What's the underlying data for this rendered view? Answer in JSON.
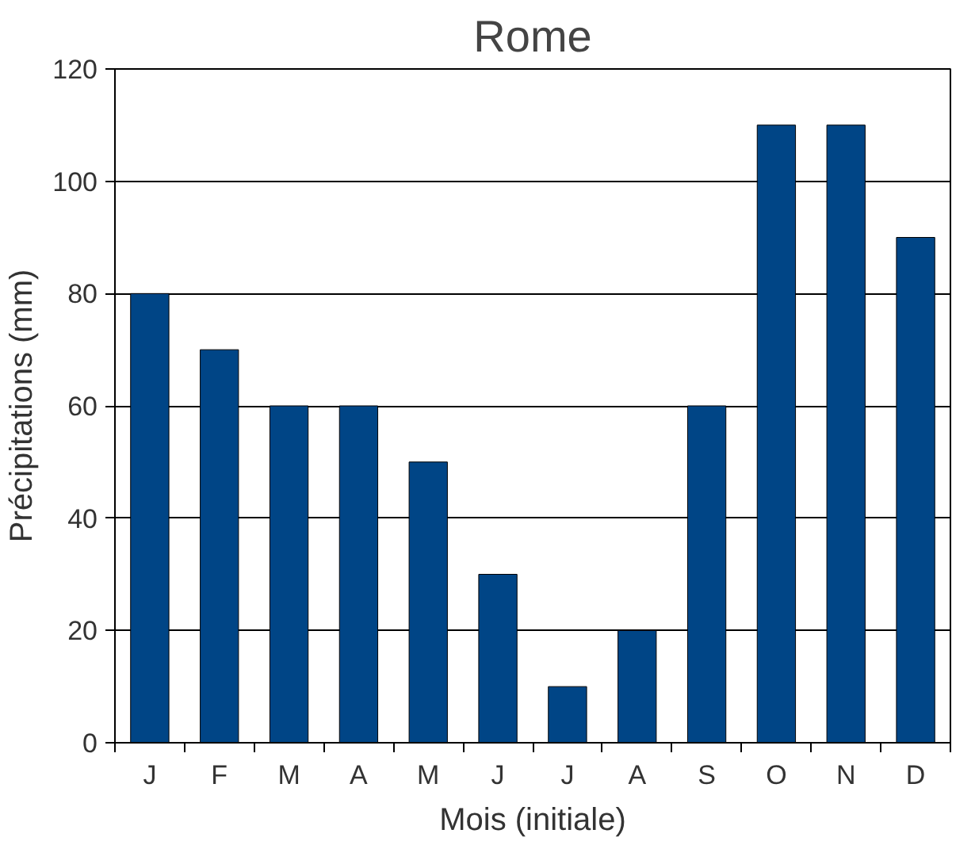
{
  "chart_data": {
    "type": "bar",
    "title": "Rome",
    "xlabel": "Mois (initiale)",
    "ylabel": "Précipitations (mm)",
    "categories": [
      "J",
      "F",
      "M",
      "A",
      "M",
      "J",
      "J",
      "A",
      "S",
      "O",
      "N",
      "D"
    ],
    "values": [
      80,
      70,
      60,
      60,
      50,
      30,
      10,
      20,
      60,
      110,
      110,
      90
    ],
    "color": "#004586",
    "ylim": [
      0,
      120
    ],
    "yticks": [
      0,
      20,
      40,
      60,
      80,
      100,
      120
    ],
    "grid": "y"
  }
}
